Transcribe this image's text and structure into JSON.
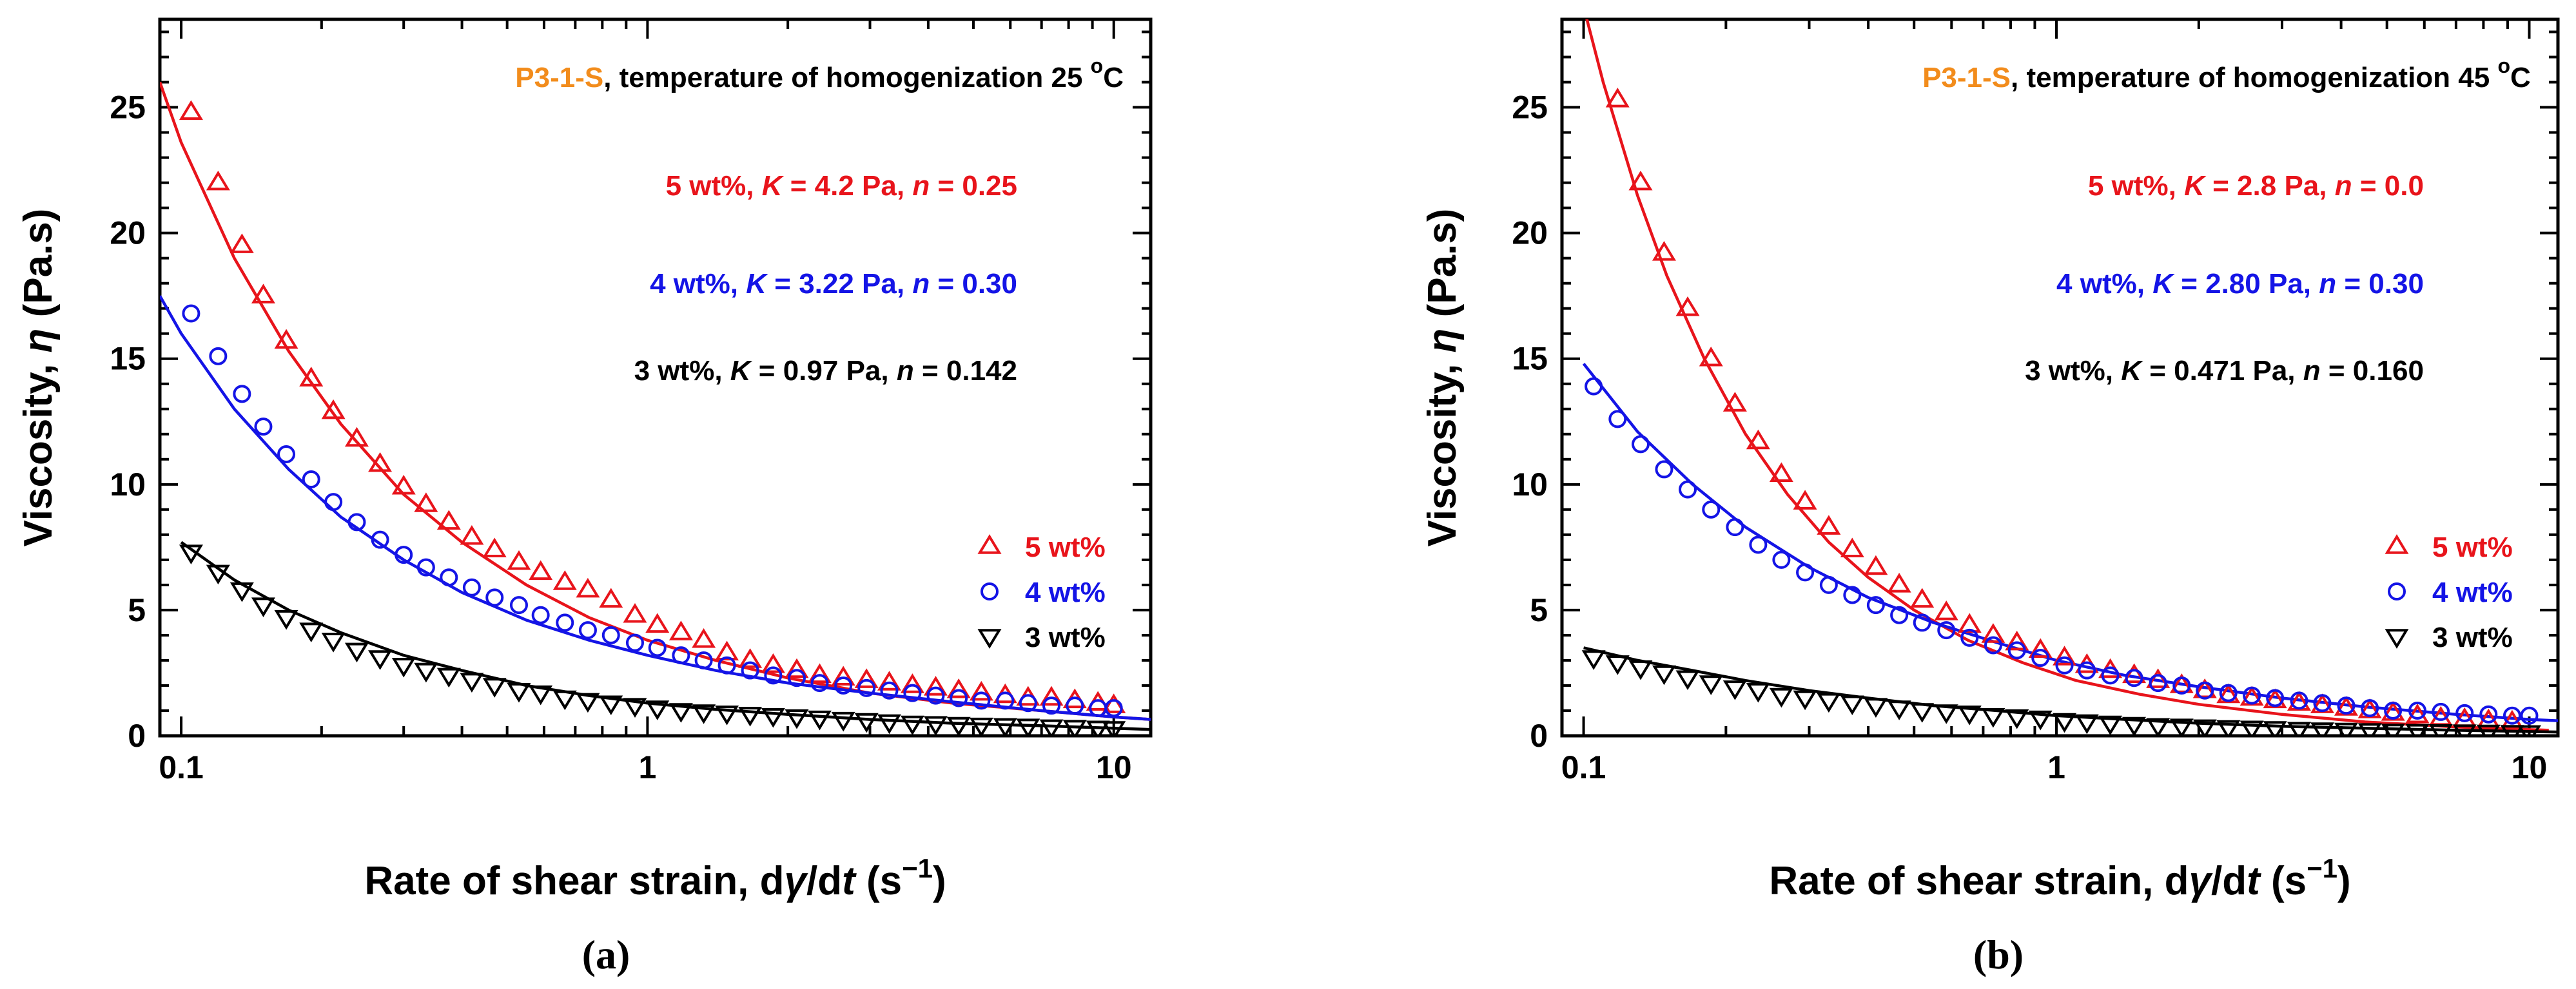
{
  "colors": {
    "red": "#e8141b",
    "blue": "#1414e6",
    "black": "#000000",
    "orange": "#f28c1c"
  },
  "chart_data": [
    {
      "type": "scatter",
      "panel_label": "(a)",
      "title_sample": "P3-1-S",
      "title_rest": ", temperature of homogenization 25 ",
      "title_sup": "o",
      "title_unit": "C",
      "xlabel_pre": "Rate of shear strain, d",
      "xlabel_gamma": "γ",
      "xlabel_mid": "/d",
      "xlabel_t": "t",
      "xlabel_units_pre": " (s",
      "xlabel_units_sup": "−1",
      "xlabel_units_post": ")",
      "ylabel_pre": "Viscosity, ",
      "ylabel_eta": "η",
      "ylabel_post": " (Pa.s)",
      "x_scale": "log",
      "xlim": [
        0.09,
        12
      ],
      "ylim": [
        0,
        28.5
      ],
      "x_ticks": [
        0.1,
        1,
        10
      ],
      "x_tick_labels": [
        "0.1",
        "1",
        "10"
      ],
      "y_ticks": [
        0,
        5,
        10,
        15,
        20,
        25
      ],
      "y_tick_labels": [
        "0",
        "5",
        "10",
        "15",
        "20",
        "25"
      ],
      "annotations": [
        {
          "wt": "5 wt%, ",
          "K": "K",
          "eq1": " = 4.2 Pa, ",
          "n": "n",
          "eq2": " = 0.25",
          "color": "red"
        },
        {
          "wt": "4 wt%, ",
          "K": "K",
          "eq1": " = 3.22 Pa, ",
          "n": "n",
          "eq2": " = 0.30",
          "color": "blue"
        },
        {
          "wt": "3 wt%, ",
          "K": "K",
          "eq1": " = 0.97 Pa, ",
          "n": "n",
          "eq2": " = 0.142",
          "color": "black"
        }
      ],
      "series": [
        {
          "name": "5 wt%",
          "marker": "triangle-up",
          "color": "red",
          "x": [
            0.105,
            0.12,
            0.135,
            0.15,
            0.168,
            0.19,
            0.212,
            0.238,
            0.267,
            0.3,
            0.335,
            0.375,
            0.42,
            0.47,
            0.53,
            0.59,
            0.665,
            0.745,
            0.835,
            0.94,
            1.05,
            1.18,
            1.32,
            1.48,
            1.66,
            1.86,
            2.09,
            2.34,
            2.63,
            2.95,
            3.3,
            3.7,
            4.15,
            4.65,
            5.2,
            5.85,
            6.55,
            7.35,
            8.25,
            9.25,
            10
          ],
          "y": [
            24.8,
            22.0,
            19.5,
            17.5,
            15.7,
            14.2,
            12.9,
            11.8,
            10.8,
            9.9,
            9.2,
            8.5,
            7.9,
            7.4,
            6.9,
            6.5,
            6.1,
            5.8,
            5.4,
            4.8,
            4.4,
            4.1,
            3.8,
            3.3,
            3.0,
            2.8,
            2.6,
            2.4,
            2.3,
            2.2,
            2.1,
            2.0,
            1.9,
            1.8,
            1.7,
            1.6,
            1.5,
            1.5,
            1.4,
            1.3,
            1.2
          ]
        },
        {
          "name": "4 wt%",
          "marker": "circle",
          "color": "blue",
          "x": [
            0.105,
            0.12,
            0.135,
            0.15,
            0.168,
            0.19,
            0.212,
            0.238,
            0.267,
            0.3,
            0.335,
            0.375,
            0.42,
            0.47,
            0.53,
            0.59,
            0.665,
            0.745,
            0.835,
            0.94,
            1.05,
            1.18,
            1.32,
            1.48,
            1.66,
            1.86,
            2.09,
            2.34,
            2.63,
            2.95,
            3.3,
            3.7,
            4.15,
            4.65,
            5.2,
            5.85,
            6.55,
            7.35,
            8.25,
            9.25,
            10
          ],
          "y": [
            16.8,
            15.1,
            13.6,
            12.3,
            11.2,
            10.2,
            9.3,
            8.5,
            7.8,
            7.2,
            6.7,
            6.3,
            5.9,
            5.5,
            5.2,
            4.8,
            4.5,
            4.2,
            4.0,
            3.7,
            3.5,
            3.2,
            3.0,
            2.8,
            2.6,
            2.4,
            2.3,
            2.1,
            2.0,
            1.9,
            1.8,
            1.7,
            1.6,
            1.5,
            1.4,
            1.4,
            1.3,
            1.2,
            1.2,
            1.1,
            1.1
          ]
        },
        {
          "name": "3 wt%",
          "marker": "triangle-down",
          "color": "black",
          "x": [
            0.105,
            0.12,
            0.135,
            0.15,
            0.168,
            0.19,
            0.212,
            0.238,
            0.267,
            0.3,
            0.335,
            0.375,
            0.42,
            0.47,
            0.53,
            0.59,
            0.665,
            0.745,
            0.835,
            0.94,
            1.05,
            1.18,
            1.32,
            1.48,
            1.66,
            1.86,
            2.09,
            2.34,
            2.63,
            2.95,
            3.3,
            3.7,
            4.15,
            4.65,
            5.2,
            5.85,
            6.55,
            7.35,
            8.25,
            9.25,
            10
          ],
          "y": [
            7.3,
            6.5,
            5.8,
            5.2,
            4.7,
            4.2,
            3.8,
            3.4,
            3.1,
            2.8,
            2.6,
            2.4,
            2.2,
            2.0,
            1.8,
            1.7,
            1.5,
            1.4,
            1.3,
            1.2,
            1.1,
            1.0,
            0.95,
            0.9,
            0.85,
            0.8,
            0.75,
            0.7,
            0.65,
            0.6,
            0.55,
            0.5,
            0.48,
            0.45,
            0.42,
            0.4,
            0.38,
            0.35,
            0.33,
            0.3,
            0.28
          ]
        }
      ],
      "fits": [
        {
          "color": "red",
          "x": [
            0.09,
            0.1,
            0.13,
            0.17,
            0.22,
            0.3,
            0.4,
            0.55,
            0.75,
            1.0,
            1.4,
            2.0,
            3.0,
            4.5,
            7.0,
            10.0,
            12.0
          ],
          "y": [
            26.0,
            23.6,
            19.0,
            15.3,
            12.4,
            9.6,
            7.7,
            6.0,
            4.7,
            3.8,
            3.0,
            2.3,
            1.7,
            1.3,
            1.0,
            0.75,
            0.65
          ]
        },
        {
          "color": "blue",
          "x": [
            0.09,
            0.1,
            0.13,
            0.17,
            0.22,
            0.3,
            0.4,
            0.55,
            0.75,
            1.0,
            1.4,
            2.0,
            3.0,
            4.5,
            7.0,
            10.0,
            12.0
          ],
          "y": [
            17.5,
            16.0,
            13.0,
            10.6,
            8.7,
            7.0,
            5.7,
            4.6,
            3.8,
            3.2,
            2.6,
            2.1,
            1.7,
            1.35,
            1.0,
            0.75,
            0.65
          ]
        },
        {
          "color": "black",
          "x": [
            0.1,
            0.13,
            0.17,
            0.22,
            0.3,
            0.4,
            0.55,
            0.75,
            1.0,
            1.4,
            2.0,
            3.0,
            4.5,
            7.0,
            10.0,
            12.0
          ],
          "y": [
            7.7,
            6.2,
            5.0,
            4.1,
            3.2,
            2.6,
            2.0,
            1.6,
            1.3,
            1.05,
            0.85,
            0.65,
            0.5,
            0.4,
            0.3,
            0.25
          ]
        }
      ]
    },
    {
      "type": "scatter",
      "panel_label": "(b)",
      "title_sample": "P3-1-S",
      "title_rest": ", temperature of homogenization 45 ",
      "title_sup": "o",
      "title_unit": "C",
      "xlabel_pre": "Rate of shear strain, d",
      "xlabel_gamma": "γ",
      "xlabel_mid": "/d",
      "xlabel_t": "t",
      "xlabel_units_pre": " (s",
      "xlabel_units_sup": "−1",
      "xlabel_units_post": ")",
      "ylabel_pre": "Viscosity, ",
      "ylabel_eta": "η",
      "ylabel_post": " (Pa.s)",
      "x_scale": "log",
      "xlim": [
        0.09,
        11.5
      ],
      "ylim": [
        0,
        28.5
      ],
      "x_ticks": [
        0.1,
        1,
        10
      ],
      "x_tick_labels": [
        "0.1",
        "1",
        "10"
      ],
      "y_ticks": [
        0,
        5,
        10,
        15,
        20,
        25
      ],
      "y_tick_labels": [
        "0",
        "5",
        "10",
        "15",
        "20",
        "25"
      ],
      "annotations": [
        {
          "wt": "5 wt%, ",
          "K": "K",
          "eq1": " = 2.8 Pa, ",
          "n": "n",
          "eq2": " = 0.0",
          "color": "red"
        },
        {
          "wt": "4 wt%, ",
          "K": "K",
          "eq1": " = 2.80 Pa, ",
          "n": "n",
          "eq2": " = 0.30",
          "color": "blue"
        },
        {
          "wt": "3 wt%, ",
          "K": "K",
          "eq1": " = 0.471 Pa, ",
          "n": "n",
          "eq2": " = 0.160",
          "color": "black"
        }
      ],
      "series": [
        {
          "name": "5 wt%",
          "marker": "triangle-up",
          "color": "red",
          "x": [
            0.118,
            0.132,
            0.148,
            0.166,
            0.186,
            0.209,
            0.234,
            0.262,
            0.294,
            0.33,
            0.37,
            0.415,
            0.465,
            0.52,
            0.585,
            0.655,
            0.735,
            0.825,
            0.925,
            1.04,
            1.16,
            1.3,
            1.46,
            1.64,
            1.84,
            2.06,
            2.31,
            2.59,
            2.9,
            3.26,
            3.65,
            4.1,
            4.6,
            5.15,
            5.8,
            6.5,
            7.3,
            8.2,
            9.2
          ],
          "y": [
            25.3,
            22.0,
            19.2,
            17.0,
            15.0,
            13.2,
            11.7,
            10.4,
            9.3,
            8.3,
            7.4,
            6.7,
            6.0,
            5.4,
            4.9,
            4.4,
            4.0,
            3.7,
            3.4,
            3.1,
            2.8,
            2.6,
            2.4,
            2.2,
            2.0,
            1.8,
            1.6,
            1.5,
            1.4,
            1.3,
            1.2,
            1.1,
            1.0,
            0.9,
            0.8,
            0.7,
            0.65,
            0.6,
            0.55
          ]
        },
        {
          "name": "4 wt%",
          "marker": "circle",
          "color": "blue",
          "x": [
            0.105,
            0.118,
            0.132,
            0.148,
            0.166,
            0.186,
            0.209,
            0.234,
            0.262,
            0.294,
            0.33,
            0.37,
            0.415,
            0.465,
            0.52,
            0.585,
            0.655,
            0.735,
            0.825,
            0.925,
            1.04,
            1.16,
            1.3,
            1.46,
            1.64,
            1.84,
            2.06,
            2.31,
            2.59,
            2.9,
            3.26,
            3.65,
            4.1,
            4.6,
            5.15,
            5.8,
            6.5,
            7.3,
            8.2,
            9.2,
            10
          ],
          "y": [
            13.9,
            12.6,
            11.6,
            10.6,
            9.8,
            9.0,
            8.3,
            7.6,
            7.0,
            6.5,
            6.0,
            5.6,
            5.2,
            4.8,
            4.5,
            4.2,
            3.9,
            3.6,
            3.4,
            3.1,
            2.8,
            2.6,
            2.4,
            2.3,
            2.1,
            2.0,
            1.8,
            1.7,
            1.6,
            1.5,
            1.4,
            1.3,
            1.2,
            1.1,
            1.0,
            1.0,
            0.95,
            0.9,
            0.85,
            0.8,
            0.8
          ]
        },
        {
          "name": "3 wt%",
          "marker": "triangle-down",
          "color": "black",
          "x": [
            0.105,
            0.118,
            0.132,
            0.148,
            0.166,
            0.186,
            0.209,
            0.234,
            0.262,
            0.294,
            0.33,
            0.37,
            0.415,
            0.465,
            0.52,
            0.585,
            0.655,
            0.735,
            0.825,
            0.925,
            1.04,
            1.16,
            1.3,
            1.46,
            1.64,
            1.84,
            2.06,
            2.31,
            2.59,
            2.9,
            3.26,
            3.65,
            4.1,
            4.6,
            5.15,
            5.8,
            6.5,
            7.3,
            8.2,
            9.2,
            10
          ],
          "y": [
            3.1,
            2.9,
            2.7,
            2.5,
            2.3,
            2.1,
            1.9,
            1.8,
            1.6,
            1.5,
            1.4,
            1.3,
            1.2,
            1.1,
            1.0,
            0.95,
            0.9,
            0.8,
            0.75,
            0.7,
            0.6,
            0.55,
            0.5,
            0.45,
            0.4,
            0.38,
            0.35,
            0.32,
            0.3,
            0.28,
            0.25,
            0.23,
            0.22,
            0.2,
            0.18,
            0.17,
            0.16,
            0.15,
            0.14,
            0.13,
            0.12
          ]
        }
      ],
      "fits": [
        {
          "color": "red",
          "x": [
            0.1,
            0.11,
            0.13,
            0.15,
            0.18,
            0.22,
            0.27,
            0.33,
            0.4,
            0.5,
            0.65,
            0.85,
            1.1,
            1.5,
            2.0,
            3.0,
            4.5,
            7.0,
            11.0
          ],
          "y": [
            29.0,
            26.0,
            21.5,
            18.3,
            15.0,
            12.0,
            9.6,
            7.7,
            6.3,
            5.0,
            3.8,
            2.9,
            2.2,
            1.65,
            1.25,
            0.85,
            0.55,
            0.35,
            0.22
          ]
        },
        {
          "color": "blue",
          "x": [
            0.1,
            0.13,
            0.17,
            0.22,
            0.3,
            0.4,
            0.55,
            0.75,
            1.0,
            1.4,
            2.0,
            3.0,
            4.5,
            7.0,
            10.0,
            11.5
          ],
          "y": [
            14.8,
            12.1,
            10.0,
            8.3,
            6.7,
            5.5,
            4.5,
            3.7,
            3.0,
            2.4,
            1.95,
            1.5,
            1.15,
            0.85,
            0.65,
            0.6
          ]
        },
        {
          "color": "black",
          "x": [
            0.1,
            0.13,
            0.17,
            0.22,
            0.3,
            0.4,
            0.55,
            0.75,
            1.0,
            1.4,
            2.0,
            3.0,
            4.5,
            7.0,
            10.0,
            11.5
          ],
          "y": [
            3.5,
            3.0,
            2.6,
            2.2,
            1.8,
            1.5,
            1.2,
            1.0,
            0.8,
            0.65,
            0.5,
            0.38,
            0.3,
            0.22,
            0.17,
            0.15
          ]
        }
      ]
    }
  ]
}
